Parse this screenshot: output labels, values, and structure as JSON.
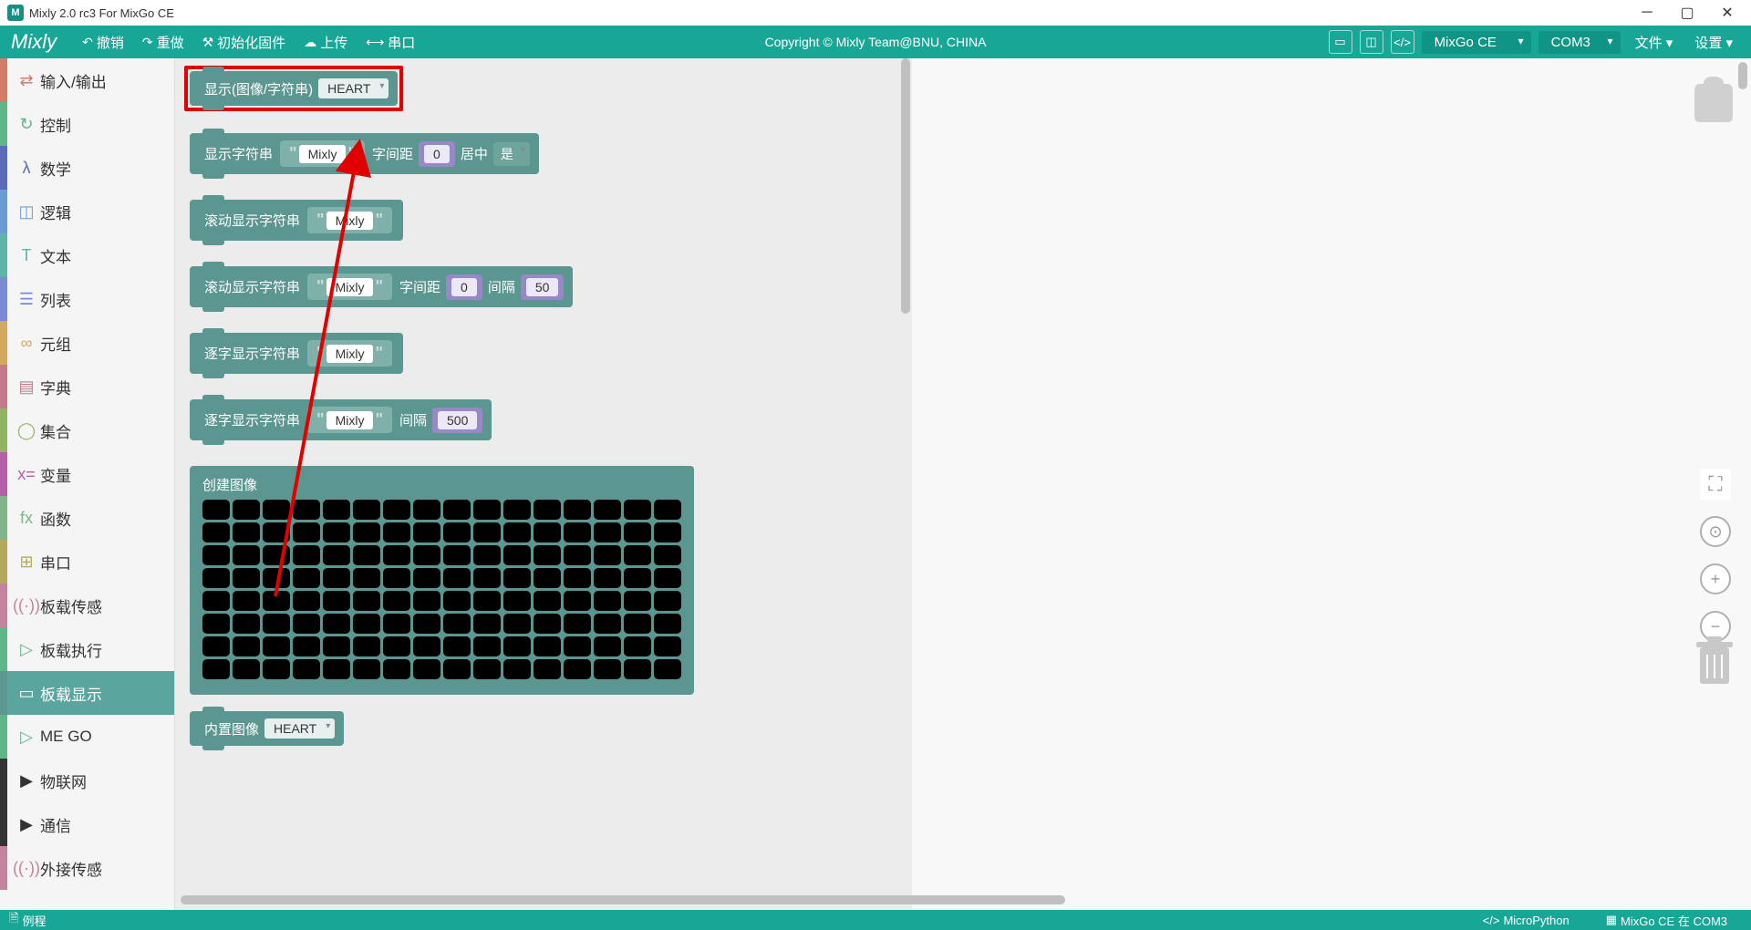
{
  "window": {
    "title": "Mixly 2.0 rc3 For MixGo CE"
  },
  "toolbar": {
    "logo": "Mixly",
    "undo": "撤销",
    "redo": "重做",
    "initfw": "初始化固件",
    "upload": "上传",
    "serial": "串口",
    "copyright": "Copyright © Mixly Team@BNU, CHINA",
    "board_sel": "MixGo CE",
    "port_sel": "COM3",
    "file_menu": "文件",
    "settings_menu": "设置"
  },
  "sidebar": {
    "items": [
      {
        "label": "输入/输出",
        "color": "#d47b6a",
        "icon": "⇄"
      },
      {
        "label": "控制",
        "color": "#5fb48a",
        "icon": "↻"
      },
      {
        "label": "数学",
        "color": "#5b6bb5",
        "icon": "λ"
      },
      {
        "label": "逻辑",
        "color": "#6a9bd4",
        "icon": "◫"
      },
      {
        "label": "文本",
        "color": "#5fb4a8",
        "icon": "T"
      },
      {
        "label": "列表",
        "color": "#7a8bd4",
        "icon": "☰"
      },
      {
        "label": "元组",
        "color": "#d4a85f",
        "icon": "∞"
      },
      {
        "label": "字典",
        "color": "#c47a8a",
        "icon": "▤"
      },
      {
        "label": "集合",
        "color": "#8fb45f",
        "icon": "◯"
      },
      {
        "label": "变量",
        "color": "#b45fa8",
        "icon": "x="
      },
      {
        "label": "函数",
        "color": "#7fb48a",
        "icon": "fx"
      },
      {
        "label": "串口",
        "color": "#b4a85f",
        "icon": "⊞"
      },
      {
        "label": "板载传感",
        "color": "#c4849e",
        "icon": "((·))"
      },
      {
        "label": "板载执行",
        "color": "#5fb48a",
        "icon": "▷"
      },
      {
        "label": "板载显示",
        "color": "#5c9690",
        "icon": "▭",
        "active": true
      },
      {
        "label": "ME GO",
        "color": "#5fb48a",
        "icon": "▷"
      },
      {
        "label": "物联网",
        "color": "#333",
        "icon": "▶"
      },
      {
        "label": "通信",
        "color": "#333",
        "icon": "▶"
      },
      {
        "label": "外接传感",
        "color": "#c4849e",
        "icon": "((·))"
      }
    ]
  },
  "blocks": {
    "b1": {
      "label": "显示(图像/字符串)",
      "dd": "HEART"
    },
    "b2": {
      "label": "显示字符串",
      "text": "Mixly",
      "spacing_lbl": "字间距",
      "spacing": "0",
      "center_lbl": "居中",
      "center": "是"
    },
    "b3": {
      "label": "滚动显示字符串",
      "text": "Mixly"
    },
    "b4": {
      "label": "滚动显示字符串",
      "text": "Mixly",
      "spacing_lbl": "字间距",
      "spacing": "0",
      "gap_lbl": "间隔",
      "gap": "50"
    },
    "b5": {
      "label": "逐字显示字符串",
      "text": "Mixly"
    },
    "b6": {
      "label": "逐字显示字符串",
      "text": "Mixly",
      "gap_lbl": "间隔",
      "gap": "500"
    },
    "b7": {
      "label": "创建图像",
      "cols": 16,
      "rows": 8
    },
    "b8": {
      "label": "内置图像",
      "dd": "HEART"
    }
  },
  "status": {
    "left": "例程",
    "r1": "MicroPython",
    "r2": "MixGo CE 在 COM3"
  },
  "colors": {
    "primary": "#18a797",
    "block": "#5c9690",
    "highlight": "#e00000"
  }
}
